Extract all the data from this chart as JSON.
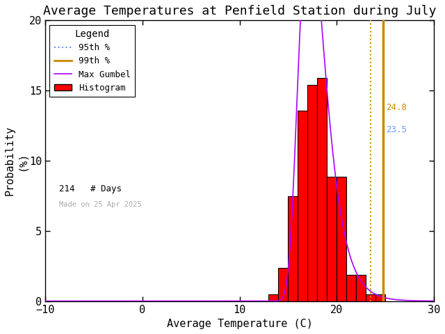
{
  "title": "Average Temperatures at Penfield Station during July",
  "xlabel": "Average Temperature (C)",
  "ylabel": "Probability\n(%)",
  "xlim": [
    -10,
    30
  ],
  "ylim": [
    0,
    20
  ],
  "xticks": [
    -10,
    0,
    10,
    20,
    30
  ],
  "yticks": [
    0,
    5,
    10,
    15,
    20
  ],
  "hist_bins": [
    13,
    14,
    15,
    16,
    17,
    18,
    19,
    20,
    21,
    22,
    23,
    24,
    25
  ],
  "hist_values": [
    0.47,
    2.34,
    7.48,
    13.55,
    15.42,
    15.89,
    8.88,
    8.88,
    1.87,
    1.87,
    0.47,
    0.47
  ],
  "bar_color": "#ff0000",
  "bar_edgecolor": "#000000",
  "gumbel_mu": 17.2,
  "gumbel_beta": 1.35,
  "percentile_95": 23.5,
  "percentile_99": 24.8,
  "n_days": 214,
  "made_on": "Made on 25 Apr 2025",
  "legend_title": "Legend",
  "line_95_color": "#cc8800",
  "line_99_color": "#cc8800",
  "gumbel_color": "#aa00ff",
  "label_95_color": "#6699ff",
  "label_99_color": "#cc8800",
  "background_color": "#ffffff",
  "title_fontsize": 13,
  "axis_fontsize": 11,
  "tick_fontsize": 11,
  "bin_width": 1
}
